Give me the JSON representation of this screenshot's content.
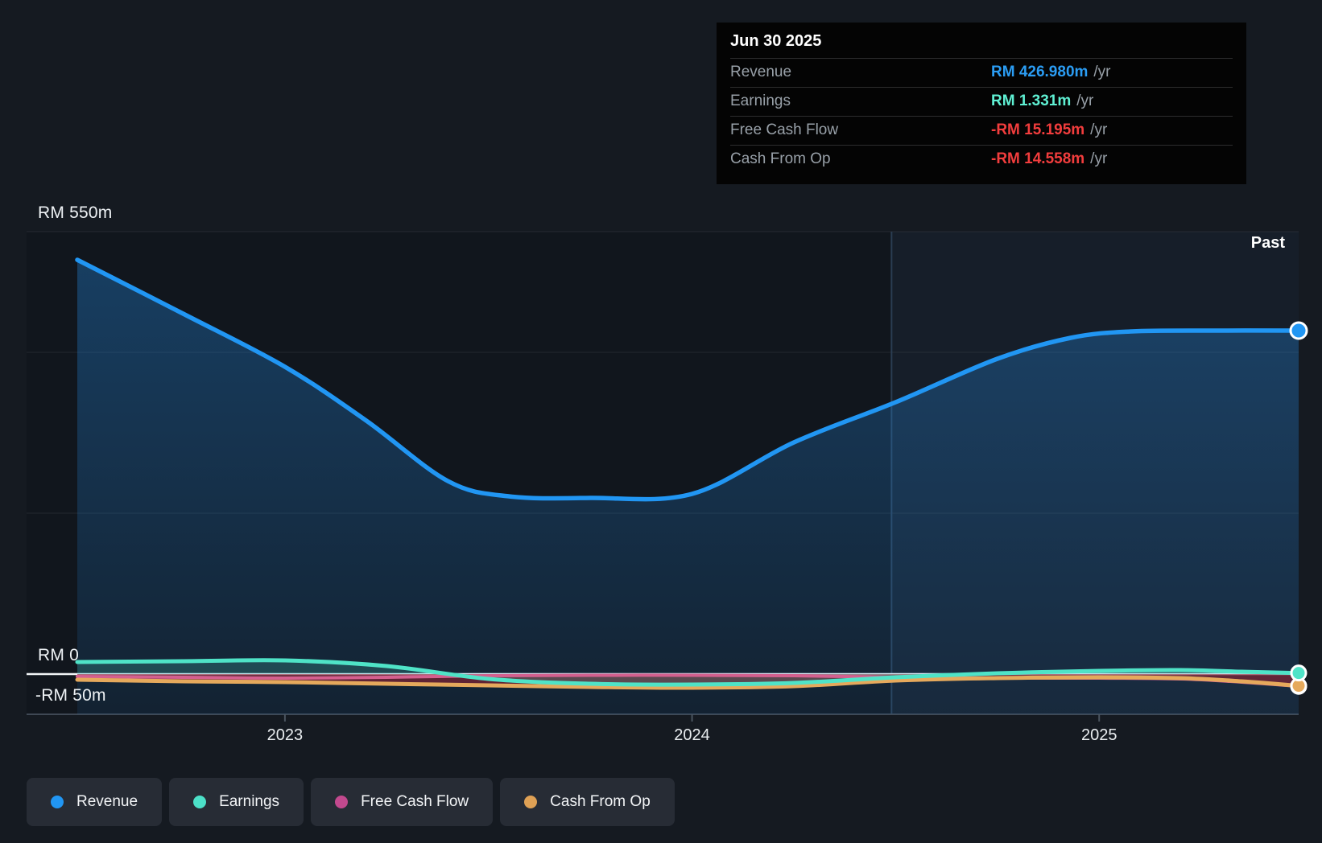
{
  "past_label": "Past",
  "tooltip": {
    "date": "Jun 30 2025",
    "rows": [
      {
        "label": "Revenue",
        "value": "RM 426.980m",
        "unit": "/yr",
        "value_color": "#2b9df4"
      },
      {
        "label": "Earnings",
        "value": "RM 1.331m",
        "unit": "/yr",
        "value_color": "#5ff0d3"
      },
      {
        "label": "Free Cash Flow",
        "value": "-RM 15.195m",
        "unit": "/yr",
        "value_color": "#f23d3d"
      },
      {
        "label": "Cash From Op",
        "value": "-RM 14.558m",
        "unit": "/yr",
        "value_color": "#f23d3d"
      }
    ]
  },
  "legend": [
    {
      "label": "Revenue",
      "color": "#2196f3"
    },
    {
      "label": "Earnings",
      "color": "#4ce0c8"
    },
    {
      "label": "Free Cash Flow",
      "color": "#c2498e"
    },
    {
      "label": "Cash From Op",
      "color": "#dfa155"
    }
  ],
  "chart_data": {
    "type": "area",
    "title": "Financial history: revenue, earnings, free cash flow, cash from operations (RM millions)",
    "x_domain": [
      2022.49,
      2025.49
    ],
    "x_ticks": [
      {
        "label": "2023",
        "year": 2023
      },
      {
        "label": "2024",
        "year": 2024
      },
      {
        "label": "2025",
        "year": 2025
      }
    ],
    "y_axis": {
      "unit": "RM millions",
      "min": -50,
      "max": 550,
      "labels": [
        {
          "text": "RM 550m",
          "value": 550
        },
        {
          "text": "RM 0",
          "value": 0
        },
        {
          "text": "-RM 50m",
          "value": -50
        }
      ],
      "gridline_values": [
        550,
        400,
        200
      ],
      "zero_value": 0,
      "axis_value": -50
    },
    "past_divider_year": 2024.49,
    "colors": {
      "plot_bg": "#11161d",
      "past_highlight": "rgba(108,156,215,0.065)",
      "divider": "#2a3d52",
      "gridline": "rgba(255,255,255,0.08)",
      "zero_line": "#f2f5f7",
      "axis_line": "#3f4854",
      "tick_mark": "#4a545f",
      "revenue_area_top": "rgba(36,140,230,0.34)",
      "revenue_area_bottom": "rgba(36,140,230,0.10)",
      "earnings_fill": "rgba(79,227,199,0.20)",
      "negative_band": "rgba(143,36,52,0.62)"
    },
    "series": [
      {
        "name": "Revenue",
        "color": "#2196f3",
        "style": "line-area",
        "end_dot": true,
        "points": [
          [
            2022.49,
            515
          ],
          [
            2022.75,
            448
          ],
          [
            2023.0,
            382
          ],
          [
            2023.2,
            315
          ],
          [
            2023.4,
            240
          ],
          [
            2023.55,
            221
          ],
          [
            2023.75,
            219
          ],
          [
            2024.0,
            224
          ],
          [
            2024.25,
            288
          ],
          [
            2024.5,
            338
          ],
          [
            2024.75,
            392
          ],
          [
            2024.93,
            418
          ],
          [
            2025.08,
            426
          ],
          [
            2025.3,
            427
          ],
          [
            2025.49,
            426.98
          ]
        ]
      },
      {
        "name": "Earnings",
        "color": "#4fe3c7",
        "style": "line-fill",
        "end_dot": true,
        "points": [
          [
            2022.49,
            15
          ],
          [
            2022.75,
            16
          ],
          [
            2023.0,
            17
          ],
          [
            2023.25,
            10
          ],
          [
            2023.5,
            -6
          ],
          [
            2023.75,
            -12
          ],
          [
            2024.0,
            -13
          ],
          [
            2024.25,
            -11
          ],
          [
            2024.5,
            -4
          ],
          [
            2024.75,
            1
          ],
          [
            2025.0,
            4
          ],
          [
            2025.2,
            5
          ],
          [
            2025.35,
            3
          ],
          [
            2025.49,
            1.331
          ]
        ]
      },
      {
        "name": "Free Cash Flow",
        "color": "#d4608f",
        "style": "line",
        "end_dot": true,
        "points": [
          [
            2022.49,
            -3
          ],
          [
            2022.75,
            -4
          ],
          [
            2023.0,
            -5
          ],
          [
            2023.25,
            -4
          ],
          [
            2023.5,
            -2
          ],
          [
            2023.75,
            -1.5
          ],
          [
            2024.0,
            -1.5
          ],
          [
            2024.25,
            -2
          ],
          [
            2024.5,
            -4
          ],
          [
            2024.75,
            -5
          ],
          [
            2025.0,
            -5
          ],
          [
            2025.2,
            -6
          ],
          [
            2025.35,
            -10
          ],
          [
            2025.49,
            -15.195
          ]
        ]
      },
      {
        "name": "Cash From Op",
        "color": "#e5a95c",
        "style": "line",
        "end_dot": true,
        "points": [
          [
            2022.49,
            -7
          ],
          [
            2022.75,
            -9
          ],
          [
            2023.0,
            -10
          ],
          [
            2023.25,
            -12
          ],
          [
            2023.5,
            -14
          ],
          [
            2023.75,
            -16
          ],
          [
            2024.0,
            -17
          ],
          [
            2024.25,
            -15
          ],
          [
            2024.5,
            -8
          ],
          [
            2024.75,
            -5
          ],
          [
            2025.0,
            -4
          ],
          [
            2025.2,
            -5
          ],
          [
            2025.35,
            -9
          ],
          [
            2025.49,
            -14.558
          ]
        ]
      }
    ]
  }
}
